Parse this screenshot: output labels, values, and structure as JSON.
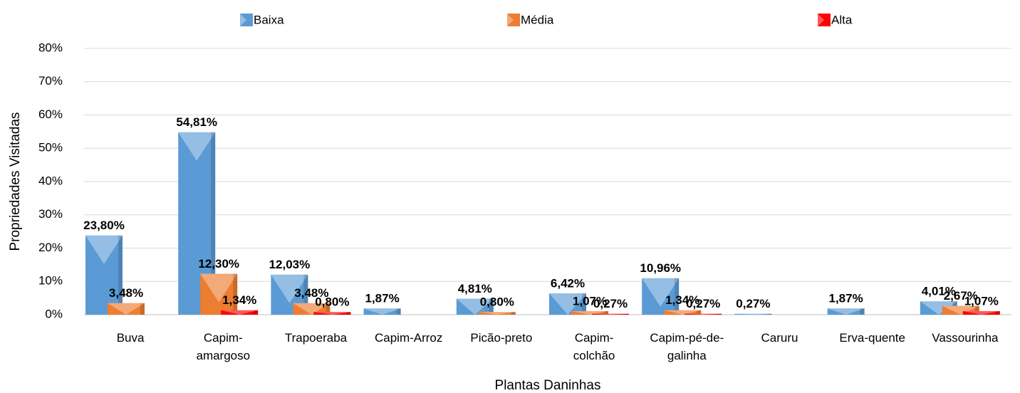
{
  "chart_data": {
    "type": "bar",
    "x_label": "Plantas Daninhas",
    "y_label": "Propriedades Visitadas",
    "categories": [
      "Buva",
      "Capim-amargoso",
      "Trapoeraba",
      "Capim-Arroz",
      "Picão-preto",
      "Capim-colchão",
      "Capim-pé-de-galinha",
      "Caruru",
      "Erva-quente",
      "Vassourinha"
    ],
    "series": [
      {
        "name": "Baixa",
        "color": "#5b9bd5",
        "values": [
          23.8,
          54.81,
          12.03,
          1.87,
          4.81,
          6.42,
          10.96,
          0.27,
          1.87,
          4.01
        ],
        "value_labels": [
          "23,80%",
          "54,81%",
          "12,03%",
          "1,87%",
          "4,81%",
          "6,42%",
          "10,96%",
          "0,27%",
          "1,87%",
          "4,01%"
        ]
      },
      {
        "name": "Média",
        "color": "#ed7d31",
        "values": [
          3.48,
          12.3,
          3.48,
          null,
          0.8,
          1.07,
          1.34,
          null,
          null,
          2.67
        ],
        "value_labels": [
          "3,48%",
          "12,30%",
          "3,48%",
          null,
          "0,80%",
          "1,07%",
          "1,34%",
          null,
          null,
          "2,67%"
        ]
      },
      {
        "name": "Alta",
        "color": "#ff0000",
        "values": [
          null,
          1.34,
          0.8,
          null,
          null,
          0.27,
          0.27,
          null,
          null,
          1.07
        ],
        "value_labels": [
          null,
          "1,34%",
          "0,80%",
          null,
          null,
          "0,27%",
          "0,27%",
          null,
          null,
          "1,07%"
        ]
      }
    ],
    "ylim": [
      0,
      80
    ],
    "yticks": [
      {
        "value": 0,
        "label": "0%"
      },
      {
        "value": 10,
        "label": "10%"
      },
      {
        "value": 20,
        "label": "20%"
      },
      {
        "value": 30,
        "label": "30%"
      },
      {
        "value": 40,
        "label": "40%"
      },
      {
        "value": 50,
        "label": "50%"
      },
      {
        "value": 60,
        "label": "60%"
      },
      {
        "value": 70,
        "label": "70%"
      },
      {
        "value": 80,
        "label": "80%"
      }
    ],
    "grid": true,
    "legend": "top"
  }
}
